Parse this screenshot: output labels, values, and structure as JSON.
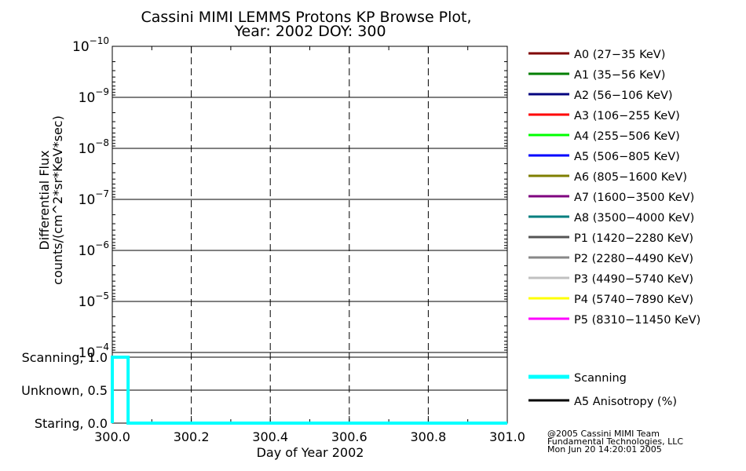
{
  "chart_data": [
    {
      "type": "line",
      "title": "Cassini MIMI LEMMS Protons KP Browse Plot,",
      "subtitle": "Year: 2002 DOY: 300",
      "ylabel_line1": "Differential Flux",
      "ylabel_line2": "counts/(cm^2*sr*KeV*sec)",
      "yscale": "log",
      "ylim": [
        0.0001,
        1e-10
      ],
      "xlim": [
        300.0,
        301.0
      ],
      "x_gridlines": [
        300.2,
        300.4,
        300.6,
        300.8
      ],
      "y_ticks": [
        {
          "base": "10",
          "exp": "−10",
          "value": 1e-10
        },
        {
          "base": "10",
          "exp": "−9",
          "value": 1e-09
        },
        {
          "base": "10",
          "exp": "−8",
          "value": 1e-08
        },
        {
          "base": "10",
          "exp": "−7",
          "value": 1e-07
        },
        {
          "base": "10",
          "exp": "−6",
          "value": 1e-06
        },
        {
          "base": "10",
          "exp": "−5",
          "value": 1e-05
        },
        {
          "base": "10",
          "exp": "−4",
          "value": 0.0001
        }
      ],
      "grid": true,
      "legend_position": "right",
      "series": [
        {
          "name": "A0 (27−35 KeV)",
          "color": "#7f0000",
          "x": [],
          "y": []
        },
        {
          "name": "A1 (35−56 KeV)",
          "color": "#007f00",
          "x": [],
          "y": []
        },
        {
          "name": "A2 (56−106 KeV)",
          "color": "#00007f",
          "x": [],
          "y": []
        },
        {
          "name": "A3 (106−255 KeV)",
          "color": "#ff0000",
          "x": [],
          "y": []
        },
        {
          "name": "A4 (255−506 KeV)",
          "color": "#00ff00",
          "x": [],
          "y": []
        },
        {
          "name": "A5 (506−805 KeV)",
          "color": "#0000ff",
          "x": [],
          "y": []
        },
        {
          "name": "A6 (805−1600 KeV)",
          "color": "#7f7f00",
          "x": [],
          "y": []
        },
        {
          "name": "A7 (1600−3500 KeV)",
          "color": "#7f007f",
          "x": [],
          "y": []
        },
        {
          "name": "A8 (3500−4000 KeV)",
          "color": "#007f7f",
          "x": [],
          "y": []
        },
        {
          "name": "P1 (1420−2280 KeV)",
          "color": "#555555",
          "x": [],
          "y": []
        },
        {
          "name": "P2 (2280−4490 KeV)",
          "color": "#888888",
          "x": [],
          "y": []
        },
        {
          "name": "P3 (4490−5740 KeV)",
          "color": "#c0c0c0",
          "x": [],
          "y": []
        },
        {
          "name": "P4 (5740−7890 KeV)",
          "color": "#ffff00",
          "x": [],
          "y": []
        },
        {
          "name": "P5 (8310−11450 KeV)",
          "color": "#ff00ff",
          "x": [],
          "y": []
        }
      ]
    },
    {
      "type": "line",
      "xlabel": "Day of Year 2002",
      "xlim": [
        300.0,
        301.0
      ],
      "ylim": [
        0.0,
        1.0
      ],
      "x_ticks": [
        "300.0",
        "300.2",
        "300.4",
        "300.6",
        "300.8",
        "301.0"
      ],
      "y_ticks": [
        {
          "label": "Staring, 0.0",
          "value": 0.0
        },
        {
          "label": "Unknown, 0.5",
          "value": 0.5
        },
        {
          "label": "Scanning, 1.0",
          "value": 1.0
        }
      ],
      "grid": true,
      "legend_position": "right",
      "series": [
        {
          "name": "Scanning",
          "color": "#00ffff",
          "x": [
            300.0,
            300.0,
            300.04,
            300.04,
            301.0
          ],
          "y": [
            0.0,
            1.0,
            1.0,
            0.0,
            0.0
          ]
        },
        {
          "name": "A5 Anisotropy (%)",
          "color": "#000000",
          "x": [],
          "y": []
        }
      ]
    }
  ],
  "credits": {
    "line1": "@2005 Cassini MIMI Team",
    "line2": "Fundamental Technologies, LLC",
    "line3": "Mon Jun 20 14:20:01 2005"
  }
}
